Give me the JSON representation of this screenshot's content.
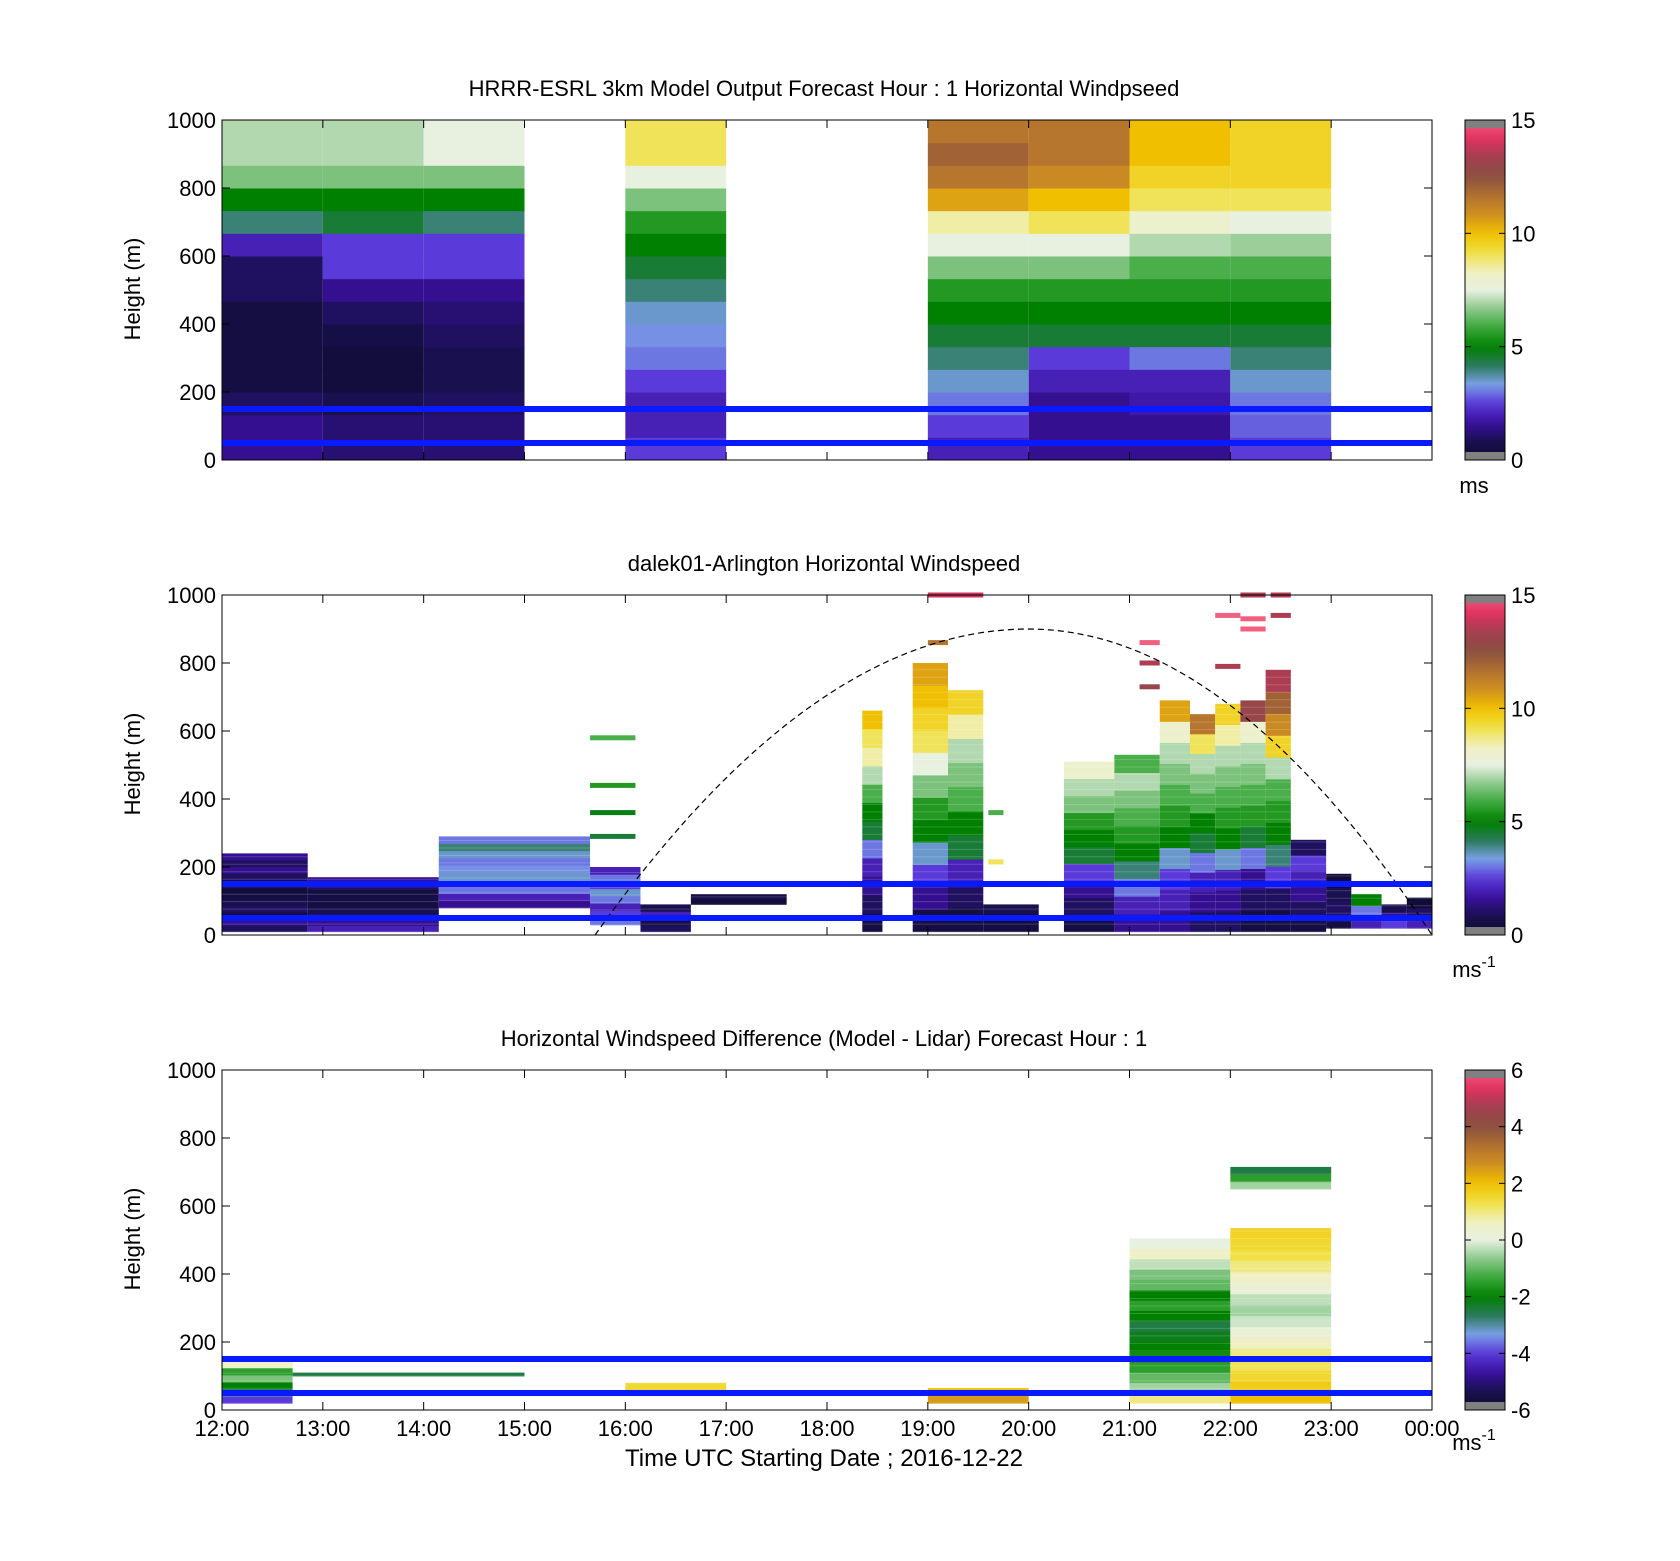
{
  "figure": {
    "xlabel": "Time UTC  Starting Date ; 2016-12-22",
    "xticks": [
      "12:00",
      "13:00",
      "14:00",
      "15:00",
      "16:00",
      "17:00",
      "18:00",
      "19:00",
      "20:00",
      "21:00",
      "22:00",
      "23:00",
      "00:00"
    ]
  },
  "colorscale": [
    "#0d0a2e",
    "#1a1050",
    "#3a10a0",
    "#5a3ad8",
    "#7aa0e8",
    "#2a7a5a",
    "#008000",
    "#3aa83a",
    "#8cc88c",
    "#e8f0e0",
    "#f0f0c0",
    "#f0e040",
    "#f0c000",
    "#d09020",
    "#b07030",
    "#8a5040",
    "#a04050",
    "#e03060",
    "#f06080"
  ],
  "chart_data": [
    {
      "type": "heatmap",
      "title": "HRRR-ESRL 3km Model Output   Forecast Hour : 1 Horizontal Windpseed",
      "ylabel": "Height (m)",
      "ylim": [
        0,
        1000
      ],
      "yticks": [
        "0",
        "200",
        "400",
        "600",
        "800",
        "1000"
      ],
      "colorbar": {
        "min": 0,
        "max": 15,
        "ticks": [
          "0",
          "5",
          "10",
          "15"
        ],
        "unit": "ms",
        "unit_sup": ""
      },
      "blue_lines_m": [
        150,
        50
      ],
      "columns": [
        {
          "t0": 12,
          "t1": 13,
          "ytop": 1000,
          "values": [
            1.5,
            1.5,
            1.0,
            0.5,
            0.5,
            0.5,
            0.5,
            1.0,
            1.0,
            2.0,
            4.0,
            5.0,
            6.5,
            7.0,
            7.0
          ]
        },
        {
          "t0": 13,
          "t1": 14,
          "ytop": 1000,
          "values": [
            1.2,
            1.2,
            0.8,
            0.4,
            0.4,
            0.6,
            1.0,
            1.5,
            2.5,
            2.5,
            4.5,
            5.0,
            6.5,
            7.0,
            7.0
          ]
        },
        {
          "t0": 14,
          "t1": 15,
          "ytop": 1000,
          "values": [
            1.2,
            1.2,
            1.0,
            0.8,
            0.8,
            1.0,
            1.2,
            1.5,
            2.5,
            2.5,
            4.0,
            5.0,
            6.5,
            7.5,
            7.5
          ]
        },
        {
          "t0": 16,
          "t1": 17,
          "ytop": 1000,
          "values": [
            2.5,
            2.0,
            2.0,
            2.5,
            3.0,
            3.2,
            3.5,
            4.0,
            4.5,
            5.0,
            5.5,
            6.5,
            7.5,
            9.0,
            9.0
          ]
        },
        {
          "t0": 19,
          "t1": 20,
          "ytop": 1000,
          "values": [
            2.0,
            2.5,
            3.0,
            3.5,
            4.0,
            4.5,
            5.0,
            5.5,
            6.5,
            7.5,
            8.5,
            10.5,
            11.5,
            12.0,
            11.5
          ]
        },
        {
          "t0": 20,
          "t1": 21,
          "ytop": 1000,
          "values": [
            1.5,
            1.5,
            1.5,
            2.0,
            2.5,
            4.5,
            5.0,
            5.5,
            6.5,
            7.5,
            9.0,
            10.0,
            11.0,
            11.5,
            11.5
          ]
        },
        {
          "t0": 21,
          "t1": 22,
          "ytop": 1000,
          "values": [
            1.5,
            1.5,
            1.8,
            2.0,
            3.0,
            4.5,
            5.0,
            5.5,
            6.0,
            7.0,
            8.0,
            9.0,
            9.5,
            10.0,
            10.0
          ]
        },
        {
          "t0": 22,
          "t1": 23,
          "ytop": 1000,
          "values": [
            2.5,
            2.8,
            3.0,
            3.5,
            4.0,
            4.5,
            5.0,
            5.5,
            6.0,
            6.8,
            7.5,
            9.0,
            9.5,
            9.5,
            9.5
          ]
        }
      ]
    },
    {
      "type": "heatmap",
      "title": "dalek01-Arlington  Horizontal Windspeed",
      "ylabel": "Height (m)",
      "ylim": [
        0,
        1000
      ],
      "yticks": [
        "0",
        "200",
        "400",
        "600",
        "800",
        "1000"
      ],
      "colorbar": {
        "min": 0,
        "max": 15,
        "ticks": [
          "0",
          "5",
          "10",
          "15"
        ],
        "unit": "ms",
        "unit_sup": "-1"
      },
      "blue_lines_m": [
        150,
        50
      ],
      "boundary_layer_curve": {
        "t_start": 15.7,
        "t_peak": 20.0,
        "h_peak": 900,
        "t_end": 24.0
      },
      "bars": [
        {
          "t0": 12.0,
          "t1": 12.85,
          "h0": 10,
          "h1": 240,
          "values": [
            1.0,
            1.5,
            0.5,
            1.0,
            0.8,
            0.5,
            0.4,
            0.6,
            1.0,
            1.5,
            1.0,
            1.5
          ]
        },
        {
          "t0": 12.85,
          "t1": 14.15,
          "h0": 10,
          "h1": 170,
          "values": [
            2.0,
            1.5,
            1.0,
            0.8,
            0.5,
            0.6,
            0.5,
            1.0,
            1.5
          ]
        },
        {
          "t0": 14.15,
          "t1": 15.65,
          "h0": 80,
          "h1": 290,
          "values": [
            1.5,
            2.0,
            3.0,
            3.5,
            3.5,
            3.2,
            3.0,
            3.5,
            4.0,
            3.0
          ]
        },
        {
          "t0": 15.65,
          "t1": 16.15,
          "h0": 30,
          "h1": 200,
          "values": [
            3.0,
            2.5,
            2.0,
            3.0,
            3.5,
            2.5,
            3.0,
            2.0
          ]
        },
        {
          "t0": 16.15,
          "t1": 16.65,
          "h0": 10,
          "h1": 90,
          "values": [
            1.0,
            0.5,
            2.0,
            0.8
          ]
        },
        {
          "t0": 16.65,
          "t1": 17.6,
          "h0": 90,
          "h1": 120,
          "values": [
            0.3,
            0.6
          ]
        },
        {
          "t0": 18.35,
          "t1": 18.55,
          "h0": 10,
          "h1": 660,
          "values": [
            0.5,
            1.0,
            1.5,
            2.0,
            3.0,
            4.5,
            5.0,
            6.0,
            7.0,
            8.5,
            9.0,
            10.0
          ]
        },
        {
          "t0": 18.85,
          "t1": 19.2,
          "h0": 10,
          "h1": 800,
          "values": [
            0.5,
            1.5,
            2.5,
            3.5,
            5.0,
            5.5,
            6.5,
            7.5,
            9.0,
            9.5,
            10.0,
            10.5
          ]
        },
        {
          "t0": 19.2,
          "t1": 19.55,
          "h0": 10,
          "h1": 720,
          "values": [
            0.5,
            1.0,
            2.0,
            4.5,
            5.0,
            6.0,
            6.5,
            7.0,
            8.5,
            9.5
          ]
        },
        {
          "t0": 19.55,
          "t1": 20.1,
          "h0": 10,
          "h1": 90,
          "values": [
            0.5,
            0.3,
            0.8
          ]
        },
        {
          "t0": 20.35,
          "t1": 20.85,
          "h0": 10,
          "h1": 510,
          "values": [
            0.5,
            1.0,
            1.5,
            2.5,
            4.5,
            5.0,
            5.5,
            6.5,
            7.0,
            8.0
          ]
        },
        {
          "t0": 20.85,
          "t1": 21.3,
          "h0": 10,
          "h1": 530,
          "values": [
            1.5,
            2.0,
            3.0,
            4.0,
            5.0,
            5.5,
            6.0,
            6.5,
            7.0,
            6.0
          ]
        },
        {
          "t0": 21.3,
          "t1": 21.6,
          "h0": 10,
          "h1": 690,
          "values": [
            1.5,
            2.0,
            2.5,
            3.5,
            5.0,
            5.5,
            6.0,
            6.5,
            7.0,
            8.0,
            10.5
          ]
        },
        {
          "t0": 21.6,
          "t1": 21.85,
          "h0": 10,
          "h1": 650,
          "values": [
            1.0,
            1.5,
            2.0,
            3.0,
            4.5,
            5.0,
            6.0,
            6.5,
            7.0,
            9.0,
            11.5
          ]
        },
        {
          "t0": 21.85,
          "t1": 22.1,
          "h0": 10,
          "h1": 680,
          "values": [
            1.0,
            1.5,
            2.0,
            3.5,
            5.0,
            5.5,
            6.0,
            6.5,
            7.0,
            8.5,
            9.5
          ]
        },
        {
          "t0": 22.1,
          "t1": 22.35,
          "h0": 10,
          "h1": 690,
          "values": [
            0.5,
            1.0,
            1.5,
            3.0,
            4.5,
            5.5,
            6.0,
            6.5,
            7.0,
            8.0,
            13.0
          ]
        },
        {
          "t0": 22.35,
          "t1": 22.6,
          "h0": 10,
          "h1": 780,
          "values": [
            0.5,
            1.0,
            2.5,
            4.0,
            5.0,
            5.5,
            6.0,
            7.0,
            9.5,
            11.0,
            12.0,
            13.5
          ]
        },
        {
          "t0": 22.6,
          "t1": 22.95,
          "h0": 10,
          "h1": 280,
          "values": [
            0.5,
            1.0,
            1.5,
            2.0,
            2.5,
            1.0
          ]
        },
        {
          "t0": 22.95,
          "t1": 23.2,
          "h0": 20,
          "h1": 180,
          "values": [
            0.5,
            1.0,
            0.8,
            0.3
          ]
        },
        {
          "t0": 23.2,
          "t1": 23.5,
          "h0": 20,
          "h1": 120,
          "values": [
            2.0,
            3.0,
            5.0
          ]
        },
        {
          "t0": 23.5,
          "t1": 23.75,
          "h0": 20,
          "h1": 90,
          "values": [
            2.5,
            1.5,
            0.8
          ]
        },
        {
          "t0": 23.75,
          "t1": 24.0,
          "h0": 20,
          "h1": 110,
          "values": [
            2.0,
            1.0,
            0.3
          ]
        }
      ],
      "streaks": [
        {
          "t0": 15.65,
          "t1": 16.1,
          "h": 580,
          "v": 6.0
        },
        {
          "t0": 15.65,
          "t1": 16.1,
          "h": 440,
          "v": 5.5
        },
        {
          "t0": 15.65,
          "t1": 16.1,
          "h": 360,
          "v": 4.8
        },
        {
          "t0": 15.65,
          "t1": 16.1,
          "h": 290,
          "v": 4.5
        },
        {
          "t0": 19.0,
          "t1": 19.55,
          "h": 1000,
          "v": 14.0
        },
        {
          "t0": 19.0,
          "t1": 19.2,
          "h": 860,
          "v": 11.5
        },
        {
          "t0": 21.1,
          "t1": 21.3,
          "h": 860,
          "v": 15.0
        },
        {
          "t0": 21.1,
          "t1": 21.3,
          "h": 800,
          "v": 13.5
        },
        {
          "t0": 21.1,
          "t1": 21.3,
          "h": 730,
          "v": 13.0
        },
        {
          "t0": 22.1,
          "t1": 22.35,
          "h": 1000,
          "v": 13.5
        },
        {
          "t0": 22.4,
          "t1": 22.6,
          "h": 1000,
          "v": 13.5
        },
        {
          "t0": 21.85,
          "t1": 22.1,
          "h": 940,
          "v": 15.0
        },
        {
          "t0": 22.1,
          "t1": 22.35,
          "h": 900,
          "v": 15.0
        },
        {
          "t0": 22.1,
          "t1": 22.35,
          "h": 930,
          "v": 15.0
        },
        {
          "t0": 22.4,
          "t1": 22.6,
          "h": 940,
          "v": 13.5
        },
        {
          "t0": 21.85,
          "t1": 22.1,
          "h": 790,
          "v": 13.5
        },
        {
          "t0": 19.6,
          "t1": 19.75,
          "h": 215,
          "v": 9.0
        },
        {
          "t0": 19.6,
          "t1": 19.75,
          "h": 360,
          "v": 6.0
        }
      ]
    },
    {
      "type": "heatmap",
      "title": "Horizontal Windspeed Difference (Model - Lidar) Forecast Hour : 1",
      "xlabel": "Time UTC  Starting Date ; 2016-12-22",
      "ylabel": "Height (m)",
      "ylim": [
        0,
        1000
      ],
      "yticks": [
        "0",
        "200",
        "400",
        "600",
        "800",
        "1000"
      ],
      "colorbar": {
        "min": -6,
        "max": 6,
        "ticks": [
          "-6",
          "-4",
          "-2",
          "0",
          "2",
          "4",
          "6"
        ],
        "unit": "ms",
        "unit_sup": "-1"
      },
      "blue_lines_m": [
        150,
        50
      ],
      "bars": [
        {
          "t0": 12.0,
          "t1": 12.7,
          "h0": 20,
          "h1": 145,
          "values": [
            -4.0,
            -3.0,
            -2.0,
            -0.8,
            -1.5,
            0.5
          ]
        },
        {
          "t0": 12.7,
          "t1": 15.0,
          "h0": 100,
          "h1": 110,
          "values": [
            -2.5
          ]
        },
        {
          "t0": 16.0,
          "t1": 17.0,
          "h0": 55,
          "h1": 80,
          "values": [
            1.5
          ]
        },
        {
          "t0": 19.0,
          "t1": 20.0,
          "h0": 20,
          "h1": 65,
          "values": [
            2.5,
            2.0
          ]
        },
        {
          "t0": 21.0,
          "t1": 22.0,
          "h0": 20,
          "h1": 505,
          "values": [
            1.0,
            -0.5,
            -1.0,
            -1.5,
            -1.8,
            -2.0,
            -2.2,
            -2.5,
            -2.0,
            -1.5,
            -2.0,
            -1.0,
            -0.8,
            -0.3,
            0.5,
            0.0
          ]
        },
        {
          "t0": 22.0,
          "t1": 23.0,
          "h0": 20,
          "h1": 535,
          "values": [
            2.0,
            1.8,
            1.5,
            1.2,
            1.0,
            0.6,
            0.2,
            -0.2,
            -0.5,
            -0.3,
            0.2,
            0.6,
            1.0,
            1.3,
            1.5,
            1.6
          ]
        },
        {
          "t0": 22.0,
          "t1": 23.0,
          "h0": 650,
          "h1": 715,
          "values": [
            -0.5,
            -1.5,
            -2.5
          ]
        }
      ]
    }
  ]
}
